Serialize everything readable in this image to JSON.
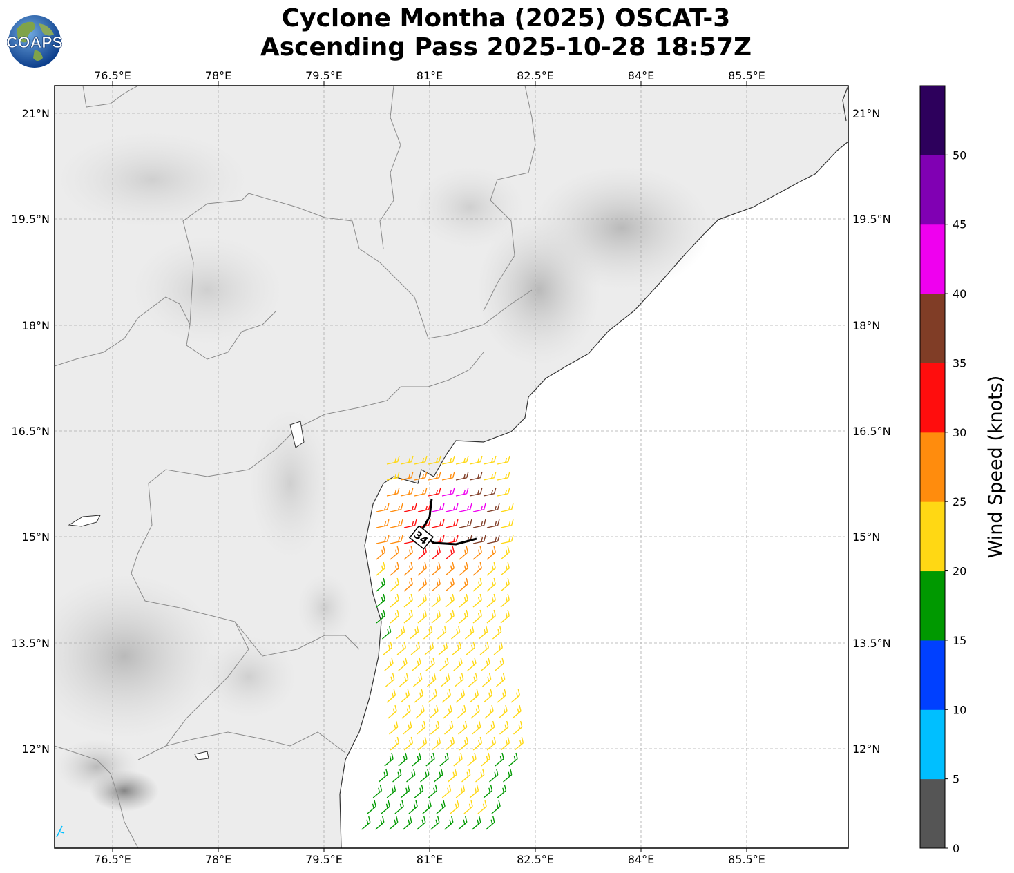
{
  "header": {
    "title_line1": "Cyclone Montha (2025) OSCAT-3",
    "title_line2": "Ascending Pass 2025-10-28 18:57Z",
    "logo_text": "COAPS"
  },
  "map": {
    "lon_ticks": [
      "76.5°E",
      "78°E",
      "79.5°E",
      "81°E",
      "82.5°E",
      "84°E",
      "85.5°E"
    ],
    "lat_ticks": [
      "21°N",
      "19.5°N",
      "18°N",
      "16.5°N",
      "15°N",
      "13.5°N",
      "12°N"
    ],
    "storm_marker": "34"
  },
  "colorbar": {
    "label": "Wind Speed (knots)",
    "ticks": [
      "0",
      "5",
      "10",
      "15",
      "20",
      "25",
      "30",
      "35",
      "40",
      "45",
      "50"
    ],
    "colors": [
      "#555555",
      "#00bfff",
      "#0040ff",
      "#009900",
      "#ffd814",
      "#ff8c0d",
      "#ff0d0d",
      "#803d26",
      "#ef00ef",
      "#8000b3",
      "#2d005c"
    ]
  }
}
